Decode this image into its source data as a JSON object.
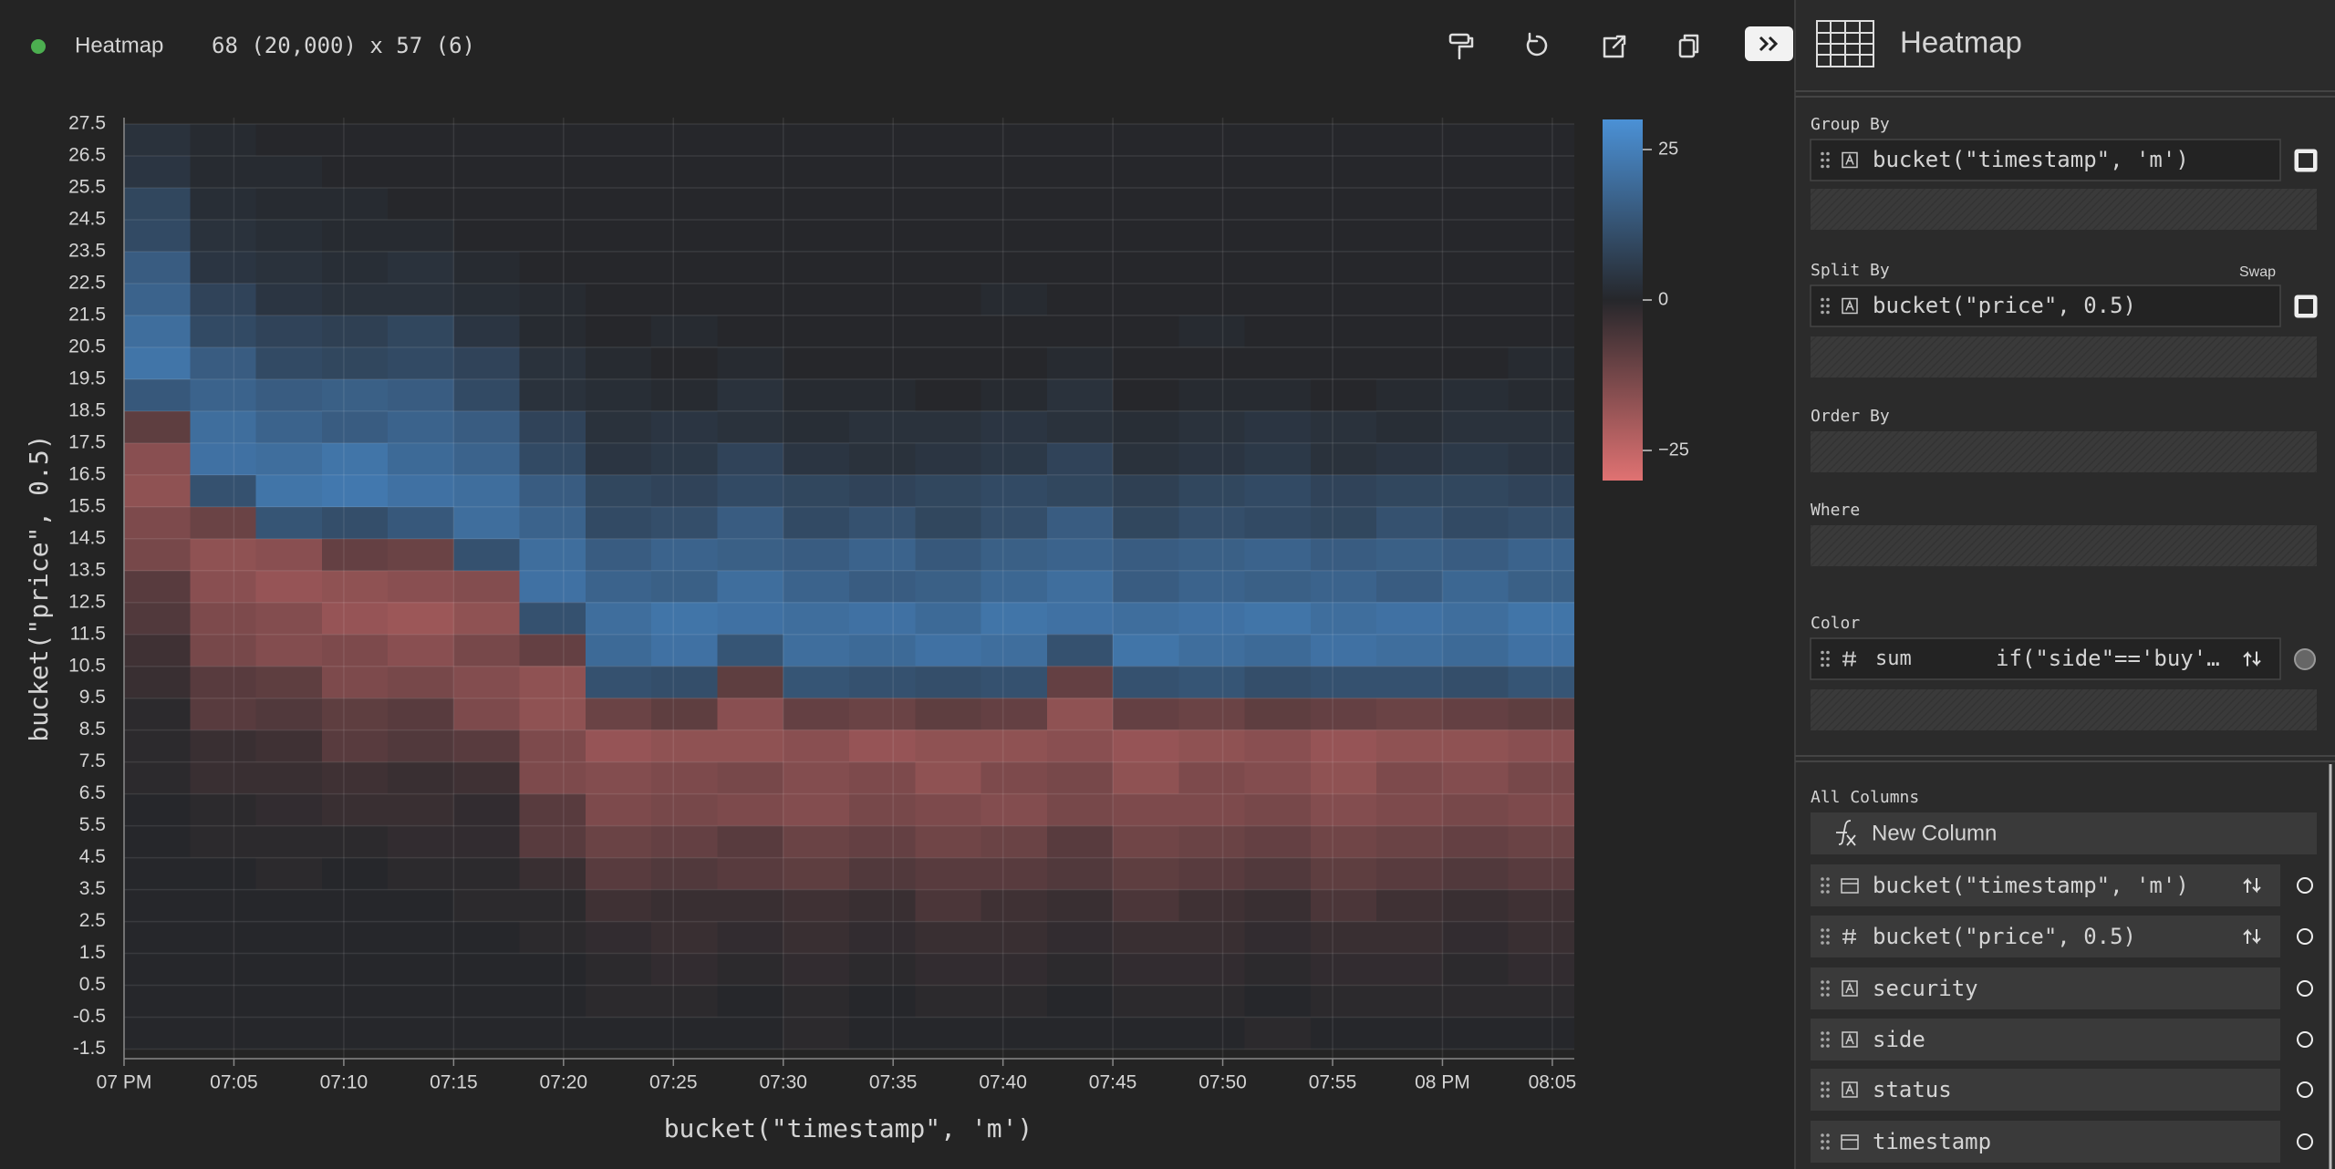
{
  "toolbar": {
    "plugin": "Heatmap",
    "dimensions": "68 (20,000) x 57 (6)"
  },
  "chart_data": {
    "type": "heatmap",
    "xlabel": "bucket(\"timestamp\", 'm')",
    "ylabel": "bucket(\"price\", 0.5)",
    "xlim": [
      0,
      66
    ],
    "ylim": [
      -1.8,
      27.7
    ],
    "xticks": [
      {
        "value": 0,
        "label": "07 PM"
      },
      {
        "value": 5,
        "label": "07:05"
      },
      {
        "value": 10,
        "label": "07:10"
      },
      {
        "value": 15,
        "label": "07:15"
      },
      {
        "value": 20,
        "label": "07:20"
      },
      {
        "value": 25,
        "label": "07:25"
      },
      {
        "value": 30,
        "label": "07:30"
      },
      {
        "value": 35,
        "label": "07:35"
      },
      {
        "value": 40,
        "label": "07:40"
      },
      {
        "value": 45,
        "label": "07:45"
      },
      {
        "value": 50,
        "label": "07:50"
      },
      {
        "value": 55,
        "label": "07:55"
      },
      {
        "value": 60,
        "label": "08 PM"
      },
      {
        "value": 65,
        "label": "08:05"
      }
    ],
    "yticks": [
      -1.5,
      -0.5,
      0.5,
      1.5,
      2.5,
      3.5,
      4.5,
      5.5,
      6.5,
      7.5,
      8.5,
      9.5,
      10.5,
      11.5,
      12.5,
      13.5,
      14.5,
      15.5,
      16.5,
      17.5,
      18.5,
      19.5,
      20.5,
      21.5,
      22.5,
      23.5,
      24.5,
      25.5,
      26.5,
      27.5
    ],
    "grid": true,
    "x": [
      0,
      3,
      6,
      9,
      12,
      15,
      18,
      21,
      24,
      27,
      30,
      33,
      36,
      39,
      42,
      45,
      48,
      51,
      54,
      57,
      60,
      63
    ],
    "y": [
      26.5,
      25.5,
      24.5,
      23.5,
      22.5,
      21.5,
      20.5,
      19.5,
      18.5,
      17.5,
      16.5,
      15.5,
      14.5,
      13.5,
      12.5,
      11.5,
      10.5,
      9.5,
      8.5,
      7.5,
      6.5,
      5.5,
      4.5,
      3.5,
      2.5,
      1.5,
      0.5,
      -0.5,
      -1.5
    ],
    "z": [
      [
        3,
        1,
        0,
        0,
        0,
        0,
        0,
        0,
        0,
        0,
        0,
        0,
        0,
        0,
        0,
        0,
        0,
        0,
        0,
        0,
        0,
        0
      ],
      [
        4,
        1,
        1,
        0,
        0,
        0,
        0,
        0,
        0,
        0,
        0,
        0,
        0,
        0,
        0,
        0,
        0,
        0,
        0,
        0,
        0,
        0
      ],
      [
        9,
        2,
        1,
        1,
        0,
        0,
        0,
        0,
        0,
        0,
        0,
        0,
        0,
        0,
        0,
        0,
        0,
        0,
        0,
        0,
        0,
        0
      ],
      [
        10,
        3,
        2,
        1,
        1,
        0,
        0,
        0,
        0,
        0,
        0,
        0,
        0,
        0,
        0,
        0,
        0,
        0,
        0,
        0,
        0,
        0
      ],
      [
        15,
        4,
        3,
        2,
        3,
        1,
        0,
        0,
        0,
        0,
        0,
        0,
        0,
        0,
        0,
        0,
        0,
        0,
        0,
        0,
        0,
        0
      ],
      [
        17,
        8,
        4,
        3,
        3,
        2,
        1,
        0,
        0,
        0,
        0,
        0,
        0,
        1,
        0,
        0,
        0,
        0,
        0,
        0,
        0,
        0
      ],
      [
        20,
        10,
        8,
        7,
        9,
        4,
        1,
        0,
        1,
        0,
        0,
        0,
        0,
        0,
        0,
        0,
        1,
        0,
        0,
        0,
        0,
        0
      ],
      [
        22,
        15,
        10,
        9,
        10,
        8,
        3,
        1,
        0,
        1,
        0,
        0,
        0,
        0,
        1,
        0,
        0,
        0,
        0,
        0,
        0,
        1
      ],
      [
        14,
        17,
        15,
        16,
        15,
        10,
        3,
        2,
        1,
        3,
        1,
        1,
        0,
        1,
        3,
        0,
        1,
        1,
        0,
        1,
        2,
        1
      ],
      [
        -9,
        20,
        17,
        15,
        17,
        15,
        8,
        3,
        4,
        3,
        2,
        3,
        3,
        4,
        3,
        2,
        3,
        4,
        3,
        2,
        3,
        3
      ],
      [
        -16,
        21,
        20,
        22,
        19,
        17,
        10,
        4,
        5,
        8,
        4,
        3,
        4,
        5,
        8,
        3,
        4,
        5,
        3,
        4,
        5,
        4
      ],
      [
        -17,
        12,
        22,
        23,
        21,
        20,
        15,
        9,
        8,
        10,
        9,
        8,
        9,
        10,
        9,
        7,
        9,
        10,
        8,
        9,
        9,
        8
      ],
      [
        -14,
        -11,
        13,
        11,
        14,
        20,
        17,
        10,
        11,
        15,
        10,
        12,
        9,
        11,
        15,
        9,
        11,
        10,
        9,
        12,
        10,
        11
      ],
      [
        -13,
        -17,
        -16,
        -10,
        -11,
        12,
        20,
        15,
        17,
        16,
        15,
        17,
        14,
        16,
        17,
        15,
        16,
        17,
        15,
        16,
        15,
        17
      ],
      [
        -8,
        -16,
        -18,
        -17,
        -16,
        -15,
        21,
        17,
        16,
        20,
        17,
        15,
        16,
        18,
        20,
        15,
        17,
        16,
        17,
        15,
        18,
        16
      ],
      [
        -7,
        -14,
        -15,
        -18,
        -19,
        -17,
        12,
        20,
        22,
        21,
        20,
        21,
        19,
        22,
        21,
        20,
        21,
        22,
        20,
        21,
        20,
        22
      ],
      [
        -4,
        -13,
        -15,
        -14,
        -16,
        -13,
        -10,
        19,
        21,
        13,
        20,
        19,
        21,
        20,
        12,
        22,
        20,
        19,
        21,
        20,
        19,
        21
      ],
      [
        -3,
        -8,
        -9,
        -14,
        -13,
        -15,
        -17,
        12,
        11,
        -9,
        13,
        12,
        11,
        12,
        -10,
        12,
        13,
        11,
        12,
        12,
        11,
        13
      ],
      [
        -1,
        -8,
        -7,
        -9,
        -8,
        -14,
        -17,
        -11,
        -9,
        -16,
        -10,
        -11,
        -9,
        -10,
        -17,
        -10,
        -11,
        -9,
        -10,
        -11,
        -10,
        -9
      ],
      [
        -1,
        -3,
        -4,
        -8,
        -7,
        -8,
        -14,
        -18,
        -17,
        -17,
        -16,
        -18,
        -17,
        -17,
        -16,
        -18,
        -17,
        -16,
        -18,
        -17,
        -17,
        -16
      ],
      [
        -1,
        -3,
        -3,
        -4,
        -3,
        -4,
        -14,
        -15,
        -14,
        -13,
        -15,
        -14,
        -17,
        -14,
        -13,
        -17,
        -14,
        -15,
        -17,
        -14,
        -15,
        -13
      ],
      [
        0,
        -1,
        -2,
        -3,
        -3,
        -2,
        -8,
        -14,
        -13,
        -14,
        -15,
        -13,
        -14,
        -15,
        -13,
        -14,
        -14,
        -13,
        -15,
        -14,
        -13,
        -14
      ],
      [
        0,
        -1,
        -1,
        -1,
        -2,
        -2,
        -8,
        -11,
        -10,
        -8,
        -11,
        -10,
        -12,
        -11,
        -8,
        -12,
        -11,
        -10,
        -12,
        -11,
        -10,
        -11
      ],
      [
        0,
        0,
        -1,
        0,
        -1,
        -1,
        -3,
        -8,
        -7,
        -8,
        -9,
        -7,
        -8,
        -8,
        -7,
        -9,
        -8,
        -7,
        -9,
        -8,
        -7,
        -8
      ],
      [
        0,
        0,
        0,
        0,
        0,
        -1,
        -1,
        -4,
        -3,
        -3,
        -4,
        -3,
        -6,
        -4,
        -3,
        -6,
        -4,
        -3,
        -6,
        -4,
        -3,
        -4
      ],
      [
        0,
        0,
        0,
        0,
        0,
        0,
        -1,
        -2,
        -3,
        -2,
        -3,
        -2,
        -3,
        -3,
        -2,
        -3,
        -3,
        -2,
        -3,
        -3,
        -2,
        -3
      ],
      [
        0,
        0,
        0,
        0,
        0,
        0,
        0,
        -1,
        -2,
        -1,
        -2,
        -1,
        -2,
        -2,
        -1,
        -2,
        -2,
        -1,
        -2,
        -2,
        -1,
        -2
      ],
      [
        0,
        0,
        0,
        0,
        0,
        0,
        0,
        -1,
        -1,
        0,
        -1,
        0,
        -1,
        -1,
        0,
        -1,
        -1,
        0,
        -1,
        -1,
        -1,
        -1
      ],
      [
        0,
        0,
        0,
        0,
        0,
        0,
        0,
        0,
        0,
        0,
        -1,
        0,
        0,
        0,
        0,
        0,
        0,
        -1,
        0,
        0,
        0,
        0
      ]
    ],
    "colorbar": {
      "lim": [
        -30,
        30
      ],
      "ticks": [
        25,
        0,
        {
          "value": -25,
          "label": "−25"
        }
      ],
      "colors": {
        "low": "#e07272",
        "mid": "#26272b",
        "high": "#4b91d6"
      }
    }
  },
  "sidebar": {
    "title": "Heatmap",
    "group_by": {
      "label": "Group By",
      "columns": [
        "bucket(\"timestamp\", 'm')"
      ]
    },
    "split_by": {
      "label": "Split By",
      "swap": "Swap",
      "columns": [
        "bucket(\"price\", 0.5)"
      ]
    },
    "order_by": {
      "label": "Order By"
    },
    "where": {
      "label": "Where"
    },
    "color": {
      "label": "Color",
      "aggregate": "sum",
      "expression": "if(\"side\"=='buy'…"
    },
    "all_columns": {
      "label": "All Columns",
      "new_column": "New Column",
      "columns": [
        "bucket(\"timestamp\", 'm')",
        "bucket(\"price\", 0.5)",
        "security",
        "side",
        "status",
        "timestamp"
      ]
    }
  }
}
